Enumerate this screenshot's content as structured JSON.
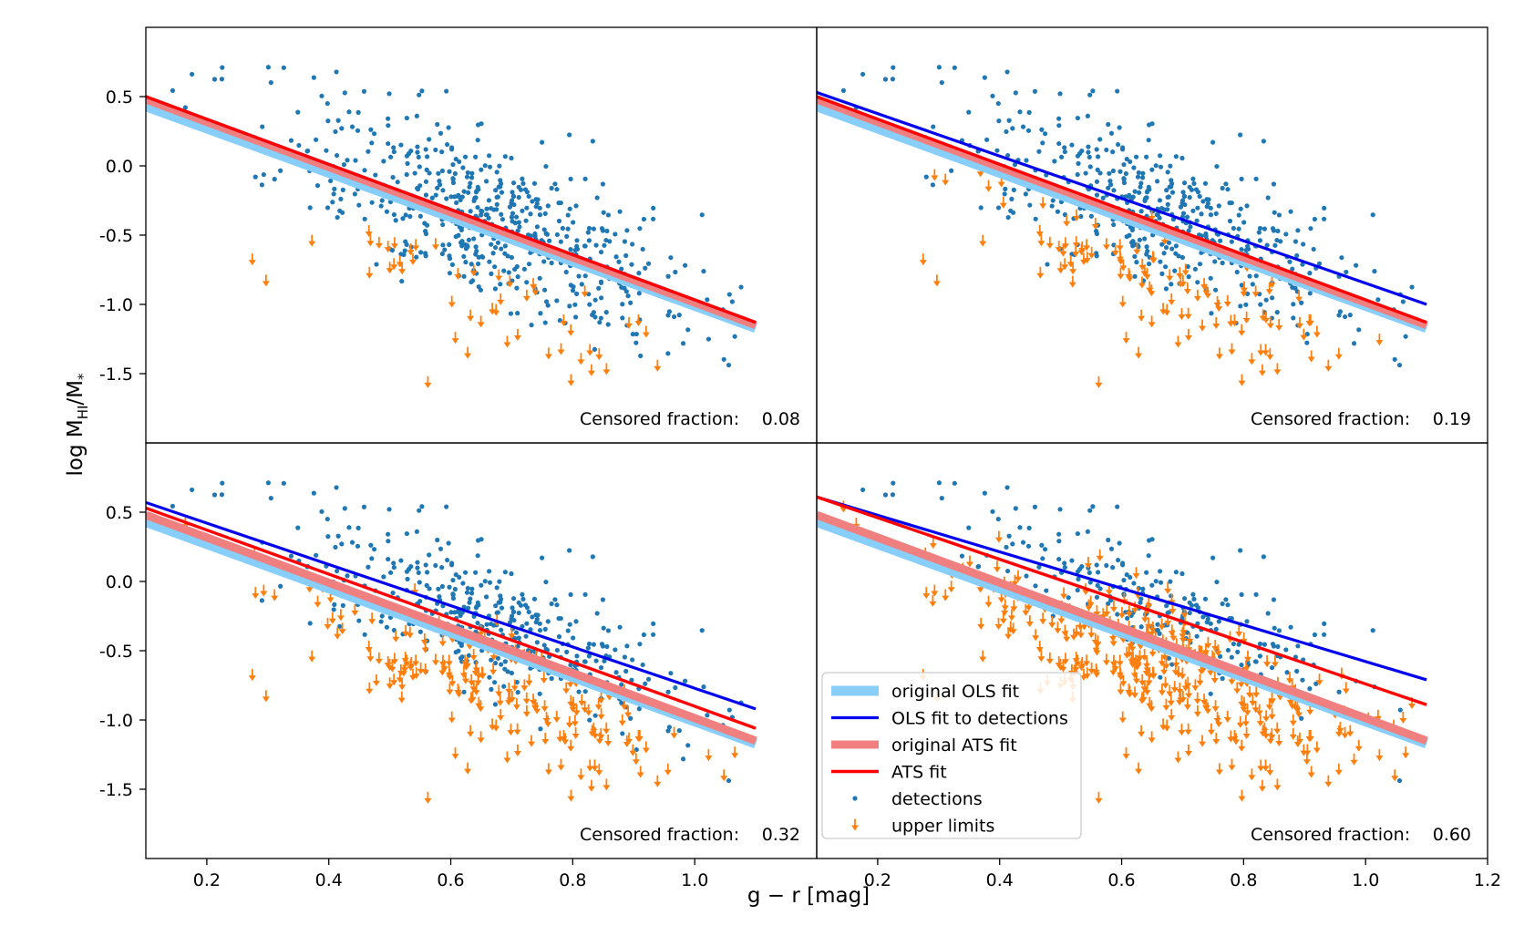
{
  "chart_data": {
    "type": "scatter",
    "xlabel": "g − r [mag]",
    "ylabel_main": "log M",
    "ylabel_sub": "HI",
    "ylabel_tail": "/M",
    "ylabel_star": "*",
    "xlim": [
      0.1,
      1.2
    ],
    "ylim": [
      -2.0,
      1.0
    ],
    "xticks": [
      {
        "v": 0.2,
        "label": "0.2"
      },
      {
        "v": 0.4,
        "label": "0.4"
      },
      {
        "v": 0.6,
        "label": "0.6"
      },
      {
        "v": 0.8,
        "label": "0.8"
      },
      {
        "v": 1.0,
        "label": "1.0"
      }
    ],
    "xtick_extra": {
      "v": 1.2,
      "label": "1.2"
    },
    "yticks": [
      {
        "v": 0.5,
        "label": "0.5"
      },
      {
        "v": 0.0,
        "label": "0.0"
      },
      {
        "v": -0.5,
        "label": "-0.5"
      },
      {
        "v": -1.0,
        "label": "-1.0"
      },
      {
        "v": -1.5,
        "label": "-1.5"
      }
    ],
    "colors": {
      "original_ols": "#87cefa",
      "ols_detections": "#0000ee",
      "original_ats": "#f08080",
      "ats": "#ff0000",
      "detections": "#1f77b4",
      "upper_limits": "#ff7f0e"
    },
    "legend": {
      "location": "lower-left of bottom-right panel",
      "entries": [
        {
          "key": "original_ols",
          "label": "original OLS fit"
        },
        {
          "key": "ols_detections",
          "label": "OLS fit to detections"
        },
        {
          "key": "original_ats",
          "label": "original ATS fit"
        },
        {
          "key": "ats",
          "label": "ATS fit"
        },
        {
          "key": "detections",
          "label": "detections"
        },
        {
          "key": "upper_limits",
          "label": "upper limits"
        }
      ]
    },
    "fits": {
      "original_ols": {
        "x": [
          0.1,
          1.1
        ],
        "y": [
          0.43,
          -1.17
        ]
      },
      "original_ats": {
        "x": [
          0.1,
          1.1
        ],
        "y": [
          0.48,
          -1.15
        ]
      }
    },
    "panels": [
      {
        "id": "top-left",
        "censored_label": "Censored fraction:",
        "censored_value": "0.08",
        "ols_detections": {
          "x": [
            0.1,
            1.1
          ],
          "y": [
            0.5,
            -1.13
          ]
        },
        "ats": {
          "x": [
            0.1,
            1.1
          ],
          "y": [
            0.5,
            -1.13
          ]
        },
        "n_detections": 560,
        "n_upper_limits": 50
      },
      {
        "id": "top-right",
        "censored_label": "Censored fraction:",
        "censored_value": "0.19",
        "ols_detections": {
          "x": [
            0.1,
            1.1
          ],
          "y": [
            0.53,
            -1.0
          ]
        },
        "ats": {
          "x": [
            0.1,
            1.1
          ],
          "y": [
            0.5,
            -1.13
          ]
        },
        "n_detections": 490,
        "n_upper_limits": 115
      },
      {
        "id": "bottom-left",
        "censored_label": "Censored fraction:",
        "censored_value": "0.32",
        "ols_detections": {
          "x": [
            0.1,
            1.1
          ],
          "y": [
            0.57,
            -0.92
          ]
        },
        "ats": {
          "x": [
            0.1,
            1.1
          ],
          "y": [
            0.53,
            -1.06
          ]
        },
        "n_detections": 410,
        "n_upper_limits": 195
      },
      {
        "id": "bottom-right",
        "censored_label": "Censored fraction:",
        "censored_value": "0.60",
        "ols_detections": {
          "x": [
            0.1,
            1.1
          ],
          "y": [
            0.61,
            -0.71
          ]
        },
        "ats": {
          "x": [
            0.1,
            1.1
          ],
          "y": [
            0.61,
            -0.89
          ]
        },
        "n_detections": 240,
        "n_upper_limits": 365
      }
    ]
  }
}
